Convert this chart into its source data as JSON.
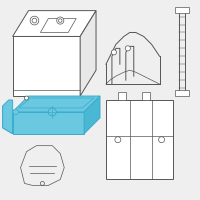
{
  "bg_color": "#efefef",
  "highlight_color": "#3aaccc",
  "highlight_fill": "#6ac8e0",
  "line_color": "#555555",
  "line_width": 0.7,
  "thin_line": 0.5,
  "fig_bg": "#efefef"
}
